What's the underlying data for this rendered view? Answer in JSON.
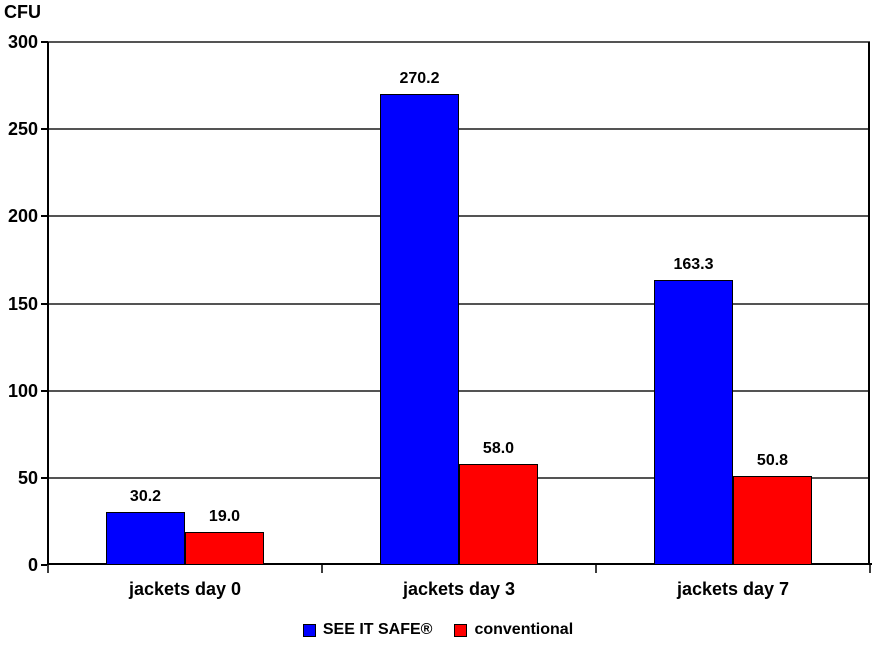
{
  "chart_data": {
    "type": "bar",
    "title": "",
    "xlabel": "",
    "ylabel": "CFU",
    "categories": [
      "jackets day 0",
      "jackets day 3",
      "jackets day 7"
    ],
    "series": [
      {
        "name": "SEE IT SAFE®",
        "color": "#0000ff",
        "values": [
          30.2,
          270.2,
          163.3
        ]
      },
      {
        "name": "conventional",
        "color": "#ff0000",
        "values": [
          19.0,
          58.0,
          50.8
        ]
      }
    ],
    "value_labels": [
      [
        "30.2",
        "19.0"
      ],
      [
        "270.2",
        "58.0"
      ],
      [
        "163.3",
        "50.8"
      ]
    ],
    "ylim": [
      0,
      300
    ],
    "yticks": [
      0,
      50,
      100,
      150,
      200,
      250,
      300
    ],
    "grid": true,
    "legend_position": "bottom"
  },
  "colors": {
    "background": "#ffffff",
    "gridline": "#545454",
    "axis": "#000000",
    "bar_border": "#000000",
    "text": "#000000",
    "series_blue": "#0000ff",
    "series_red": "#ff0000"
  }
}
